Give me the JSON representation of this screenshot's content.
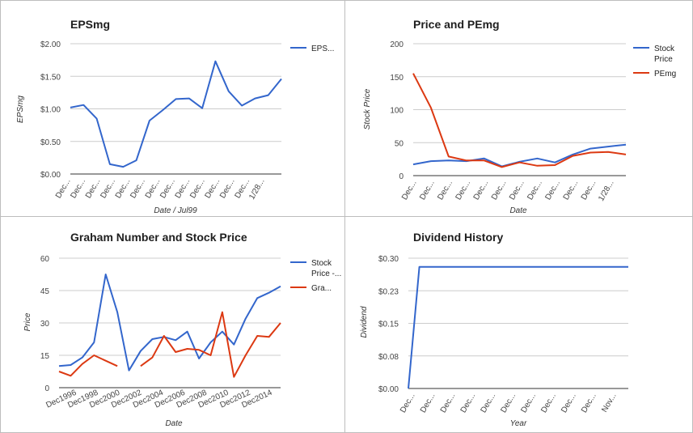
{
  "chart_data": [
    {
      "type": "line",
      "title": "EPSmg",
      "xlabel": "Date / Jul99",
      "ylabel": "EPSmg",
      "ylim": [
        0,
        2
      ],
      "yticks": [
        "$0.00",
        "$0.50",
        "$1.00",
        "$1.50",
        "$2.00"
      ],
      "categories": [
        "Dec...",
        "Dec...",
        "Dec...",
        "Dec...",
        "Dec...",
        "Dec...",
        "Dec...",
        "Dec...",
        "Dec...",
        "Dec...",
        "Dec...",
        "Dec...",
        "Dec...",
        "1/28..."
      ],
      "x": [
        0,
        1,
        2,
        3,
        4,
        5,
        6,
        7,
        8,
        9,
        10,
        11,
        12,
        13,
        14,
        15,
        16,
        17,
        18,
        19,
        20,
        21
      ],
      "series": [
        {
          "name": "EPS...",
          "color": "#3366cc",
          "values": [
            1.02,
            1.06,
            0.85,
            0.15,
            0.11,
            0.21,
            0.82,
            0.98,
            1.15,
            1.16,
            1.01,
            1.73,
            1.27,
            1.05,
            1.16,
            1.21,
            1.46,
            null,
            null,
            null,
            null,
            null
          ]
        }
      ],
      "legend": "right",
      "grid": true
    },
    {
      "type": "line",
      "title": "Price and PEmg",
      "xlabel": "Date",
      "ylabel": "Stock Price",
      "ylim": [
        0,
        200
      ],
      "yticks": [
        "0",
        "50",
        "100",
        "150",
        "200"
      ],
      "categories": [
        "Dec...",
        "Dec...",
        "Dec...",
        "Dec...",
        "Dec...",
        "Dec...",
        "Dec...",
        "Dec...",
        "Dec...",
        "Dec...",
        "Dec...",
        "1/28..."
      ],
      "x": [
        0,
        1,
        2,
        3,
        4,
        5,
        6,
        7,
        8,
        9,
        10,
        11,
        12,
        13,
        14,
        15
      ],
      "series": [
        {
          "name": "Stock Price",
          "color": "#3366cc",
          "values": [
            17,
            22,
            23,
            22,
            26,
            14,
            21,
            26,
            20,
            32,
            41,
            44,
            47,
            null,
            null,
            null
          ]
        },
        {
          "name": "PEmg",
          "color": "#dc3912",
          "values": [
            155,
            103,
            29,
            23,
            23,
            13,
            20,
            15,
            16,
            30,
            35,
            36,
            32,
            null,
            null,
            null
          ]
        }
      ],
      "legend": "right",
      "grid": true
    },
    {
      "type": "line",
      "title": "Graham Number and Stock Price",
      "xlabel": "Date",
      "ylabel": "Price",
      "ylim": [
        0,
        60
      ],
      "yticks": [
        "0",
        "15",
        "30",
        "45",
        "60"
      ],
      "categories": [
        "Dec1996",
        "Dec1998",
        "Dec2000",
        "Dec2002",
        "Dec2004",
        "Dec2006",
        "Dec2008",
        "Dec2010",
        "Dec2012",
        "Dec2014"
      ],
      "x": [
        0,
        1,
        2,
        3,
        4,
        5,
        6,
        7,
        8,
        9,
        10,
        11,
        12,
        13,
        14,
        15,
        16,
        17,
        18,
        19,
        20
      ],
      "series": [
        {
          "name": "Stock Price -...",
          "color": "#3366cc",
          "values": [
            10,
            10.5,
            14,
            21,
            52.5,
            35,
            8,
            17,
            22.5,
            23.5,
            22,
            26,
            13.5,
            21,
            26,
            20,
            32,
            41.5,
            44,
            47,
            null
          ]
        },
        {
          "name": "Gra...",
          "color": "#dc3912",
          "values": [
            7.5,
            5.5,
            11,
            15,
            12.5,
            10,
            null,
            10,
            14,
            24,
            16.5,
            18,
            17.5,
            15,
            35,
            5,
            15,
            24,
            23.5,
            30,
            null
          ]
        }
      ],
      "legend": "right",
      "grid": true
    },
    {
      "type": "line",
      "title": "Dividend History",
      "xlabel": "Year",
      "ylabel": "Dividend",
      "ylim": [
        0,
        0.3
      ],
      "yticks": [
        "$0.00",
        "$0.08",
        "$0.15",
        "$0.23",
        "$0.30"
      ],
      "categories": [
        "Dec...",
        "Dec...",
        "Dec...",
        "Dec...",
        "Dec...",
        "Dec...",
        "Dec...",
        "Dec...",
        "Dec...",
        "Dec...",
        "Nov..."
      ],
      "x": [
        0,
        0.5,
        10
      ],
      "series": [
        {
          "name": "",
          "color": "#3366cc",
          "values": [
            0,
            0.28,
            0.28
          ]
        }
      ],
      "legend": "none",
      "grid": true
    }
  ]
}
